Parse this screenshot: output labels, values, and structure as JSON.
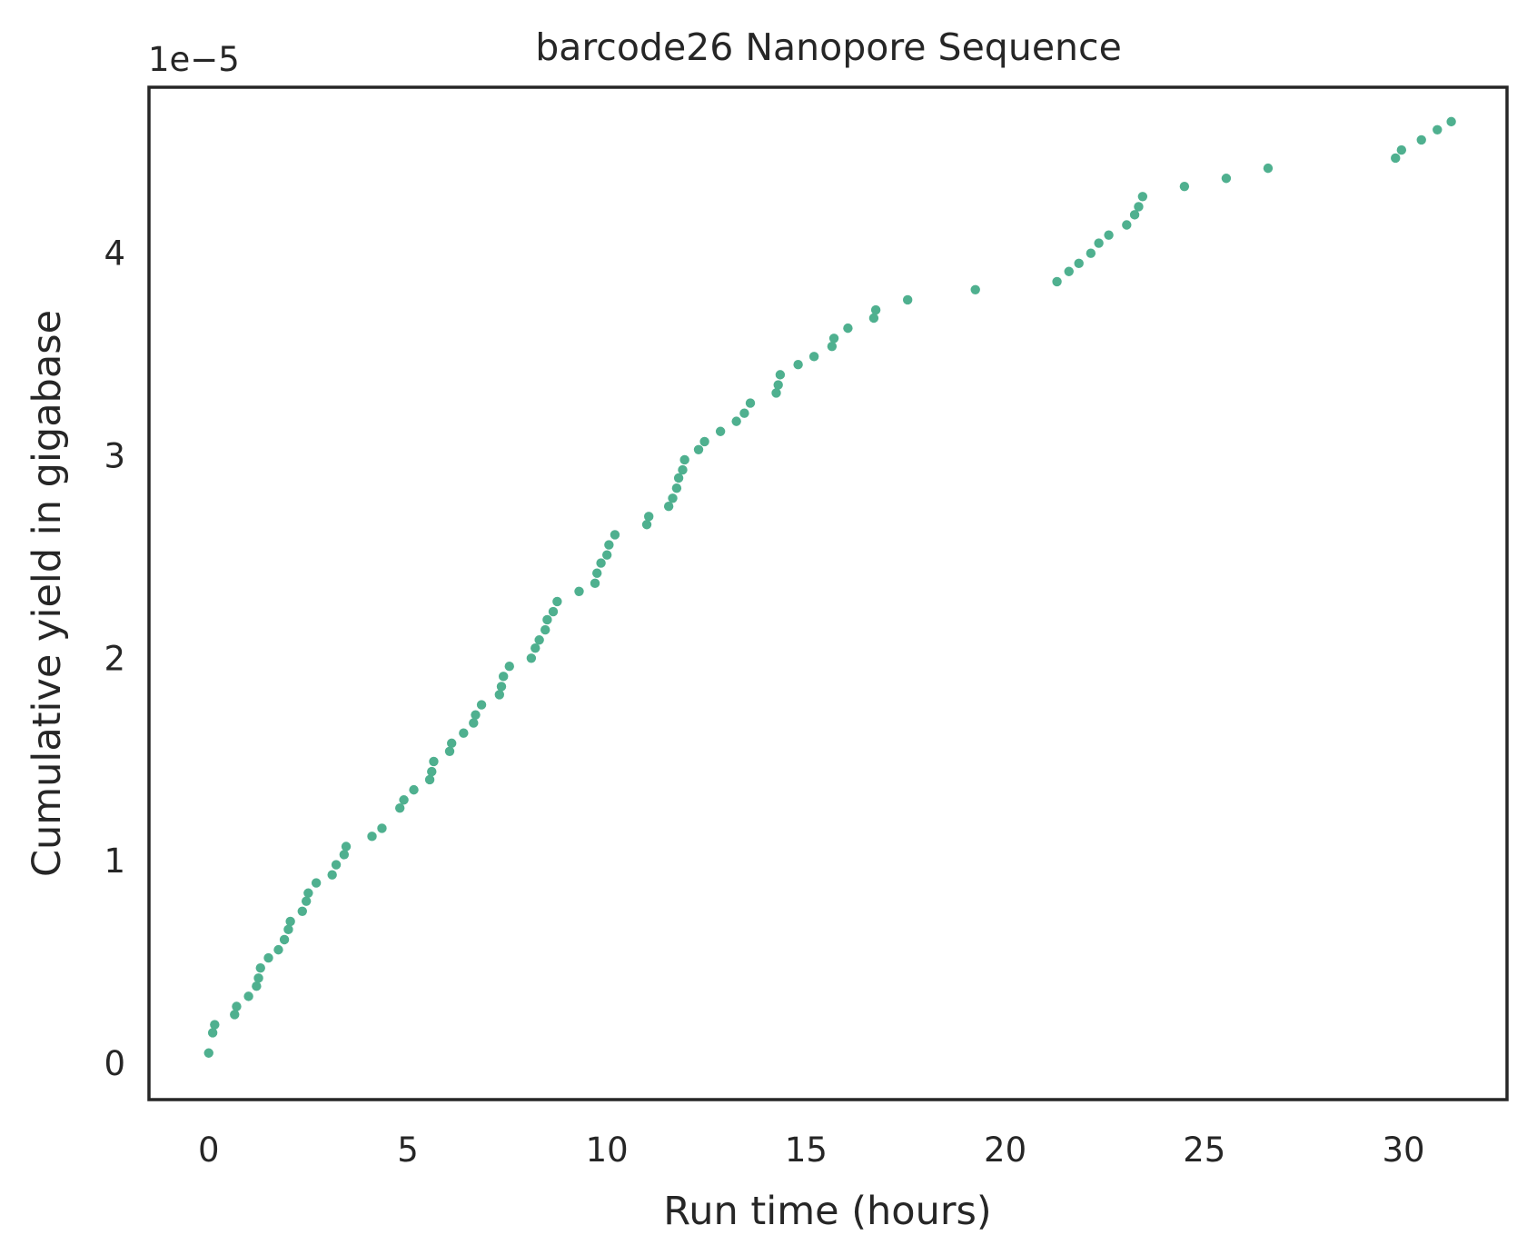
{
  "chart_data": {
    "type": "scatter",
    "title": "barcode26 Nanopore Sequence",
    "xlabel": "Run time (hours)",
    "ylabel": "Cumulative yield in gigabase",
    "y_offset_label": "1e−5",
    "xlim": [
      -1.5,
      32.6
    ],
    "ylim": [
      -0.18,
      4.82
    ],
    "x_ticks": [
      0,
      5,
      10,
      15,
      20,
      25,
      30
    ],
    "x_tick_labels": [
      "0",
      "5",
      "10",
      "15",
      "20",
      "25",
      "30"
    ],
    "y_ticks": [
      0,
      1,
      2,
      3,
      4
    ],
    "y_tick_labels": [
      "0",
      "1",
      "2",
      "3",
      "4"
    ],
    "y_unit_multiplier": 1e-05,
    "grid": false,
    "marker_color": "#4fb08f",
    "frame_color": "#262626",
    "series": [
      {
        "x": [
          0.0,
          0.1,
          0.15,
          0.65,
          0.7,
          1.0,
          1.2,
          1.25,
          1.3,
          1.5,
          1.75,
          1.9,
          2.0,
          2.05,
          2.35,
          2.45,
          2.5,
          2.7,
          3.1,
          3.2,
          3.4,
          3.45,
          4.1,
          4.35,
          4.8,
          4.9,
          5.15,
          5.55,
          5.6,
          5.65,
          6.05,
          6.1,
          6.4,
          6.65,
          6.7,
          6.85,
          7.3,
          7.35,
          7.4,
          7.55,
          8.1,
          8.2,
          8.3,
          8.45,
          8.5,
          8.65,
          8.75,
          9.3,
          9.7,
          9.75,
          9.85,
          10.0,
          10.05,
          10.2,
          11.0,
          11.05,
          11.55,
          11.65,
          11.75,
          11.8,
          11.9,
          11.95,
          12.3,
          12.45,
          12.85,
          13.25,
          13.45,
          13.6,
          14.25,
          14.3,
          14.35,
          14.8,
          15.2,
          15.65,
          15.7,
          16.05,
          16.7,
          16.75,
          17.55,
          19.25,
          21.3,
          21.6,
          21.85,
          22.15,
          22.35,
          22.6,
          23.05,
          23.25,
          23.35,
          23.45,
          24.5,
          25.55,
          26.6,
          29.8,
          29.95,
          30.45,
          30.85,
          31.2
        ],
        "y": [
          0.05,
          0.15,
          0.19,
          0.24,
          0.28,
          0.33,
          0.38,
          0.42,
          0.47,
          0.52,
          0.56,
          0.61,
          0.66,
          0.7,
          0.75,
          0.8,
          0.84,
          0.89,
          0.93,
          0.98,
          1.03,
          1.07,
          1.12,
          1.16,
          1.26,
          1.3,
          1.35,
          1.4,
          1.44,
          1.49,
          1.54,
          1.58,
          1.63,
          1.68,
          1.72,
          1.77,
          1.82,
          1.86,
          1.91,
          1.96,
          2.0,
          2.05,
          2.09,
          2.14,
          2.19,
          2.23,
          2.28,
          2.33,
          2.37,
          2.42,
          2.47,
          2.51,
          2.56,
          2.61,
          2.66,
          2.7,
          2.75,
          2.79,
          2.84,
          2.89,
          2.93,
          2.98,
          3.03,
          3.07,
          3.12,
          3.17,
          3.21,
          3.26,
          3.31,
          3.35,
          3.4,
          3.45,
          3.49,
          3.54,
          3.58,
          3.63,
          3.68,
          3.72,
          3.77,
          3.82,
          3.86,
          3.91,
          3.95,
          4.0,
          4.05,
          4.09,
          4.14,
          4.19,
          4.23,
          4.28,
          4.33,
          4.37,
          4.42,
          4.47,
          4.51,
          4.56,
          4.61,
          4.65
        ]
      }
    ]
  }
}
